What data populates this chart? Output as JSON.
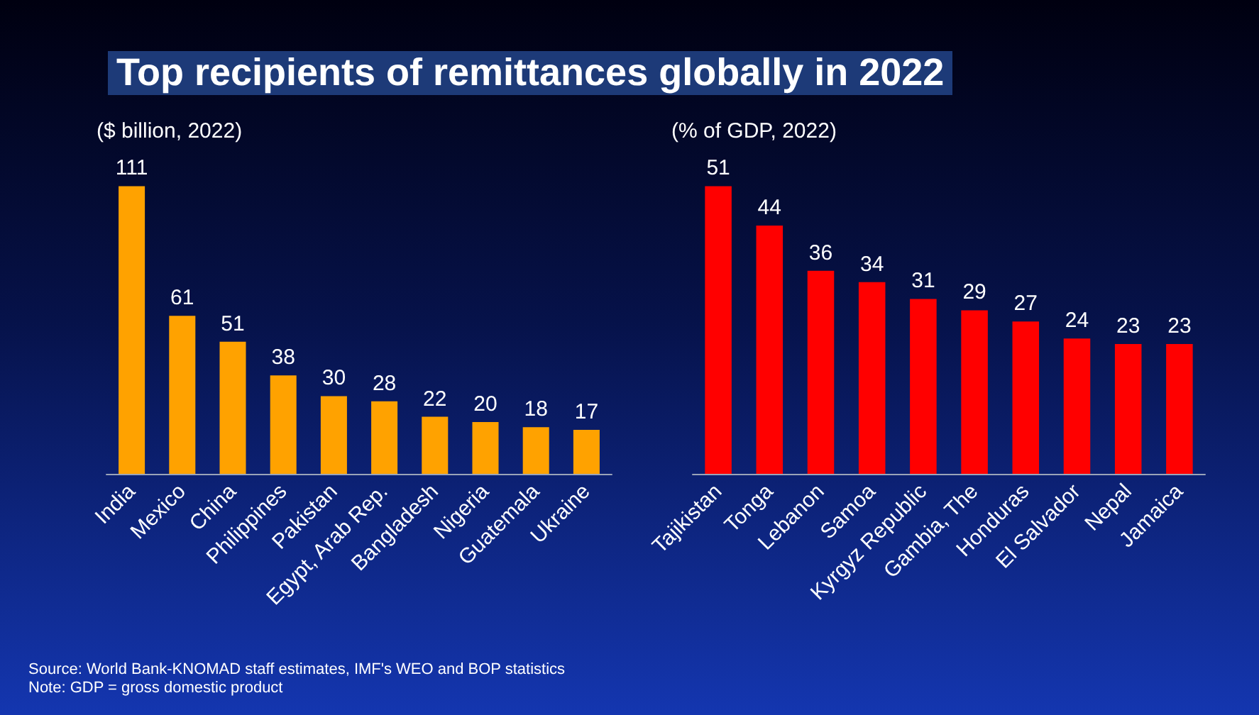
{
  "chart_data": [
    {
      "type": "bar",
      "title": "Top recipients of remittances globally in 2022",
      "subtitle": "($ billion, 2022)",
      "categories": [
        "India",
        "Mexico",
        "China",
        "Philippines",
        "Pakistan",
        "Egypt, Arab Rep.",
        "Bangladesh",
        "Nigeria",
        "Guatemala",
        "Ukraine"
      ],
      "values": [
        111,
        61,
        51,
        38,
        30,
        28,
        22,
        20,
        18,
        17
      ],
      "color": "#ffa200",
      "data_labels": true,
      "annotations": [
        "Source: World Bank-KNOMAD staff estimates, IMF's WEO and BOP statistics",
        "Note: GDP = gross domestic product"
      ]
    },
    {
      "type": "bar",
      "subtitle": "(% of GDP, 2022)",
      "categories": [
        "Tajikistan",
        "Tonga",
        "Lebanon",
        "Samoa",
        "Kyrgyz Republic",
        "Gambia, The",
        "Honduras",
        "El Salvador",
        "Nepal",
        "Jamaica"
      ],
      "values": [
        51,
        44,
        36,
        34,
        31,
        29,
        27,
        24,
        23,
        23
      ],
      "color": "#ff0000",
      "data_labels": true
    }
  ]
}
